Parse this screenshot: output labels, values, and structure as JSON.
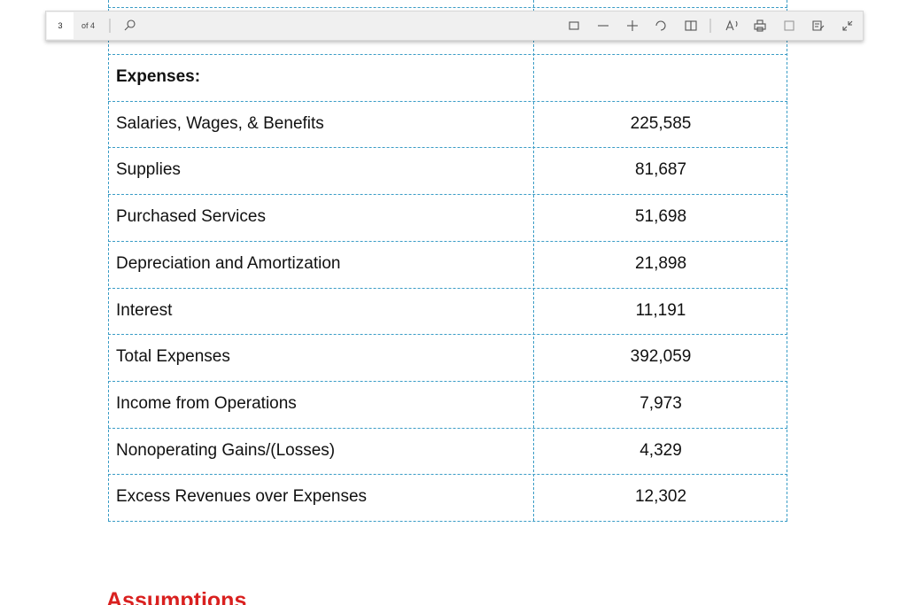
{
  "toolbar": {
    "page": "3",
    "page_count": "of 4"
  },
  "table": {
    "section_label": "Expenses:",
    "rows": [
      [
        "Salaries, Wages, & Benefits",
        "225,585"
      ],
      [
        "Supplies",
        "81,687"
      ],
      [
        "Purchased Services",
        "51,698"
      ],
      [
        "Depreciation and Amortization",
        "21,898"
      ],
      [
        "Interest",
        "11,191"
      ],
      [
        "Total Expenses",
        "392,059"
      ],
      [
        "Income from Operations",
        "7,973"
      ],
      [
        "Nonoperating Gains/(Losses)",
        "4,329"
      ],
      [
        "Excess Revenues over Expenses",
        "12,302"
      ]
    ]
  },
  "heading": "Assumptions"
}
